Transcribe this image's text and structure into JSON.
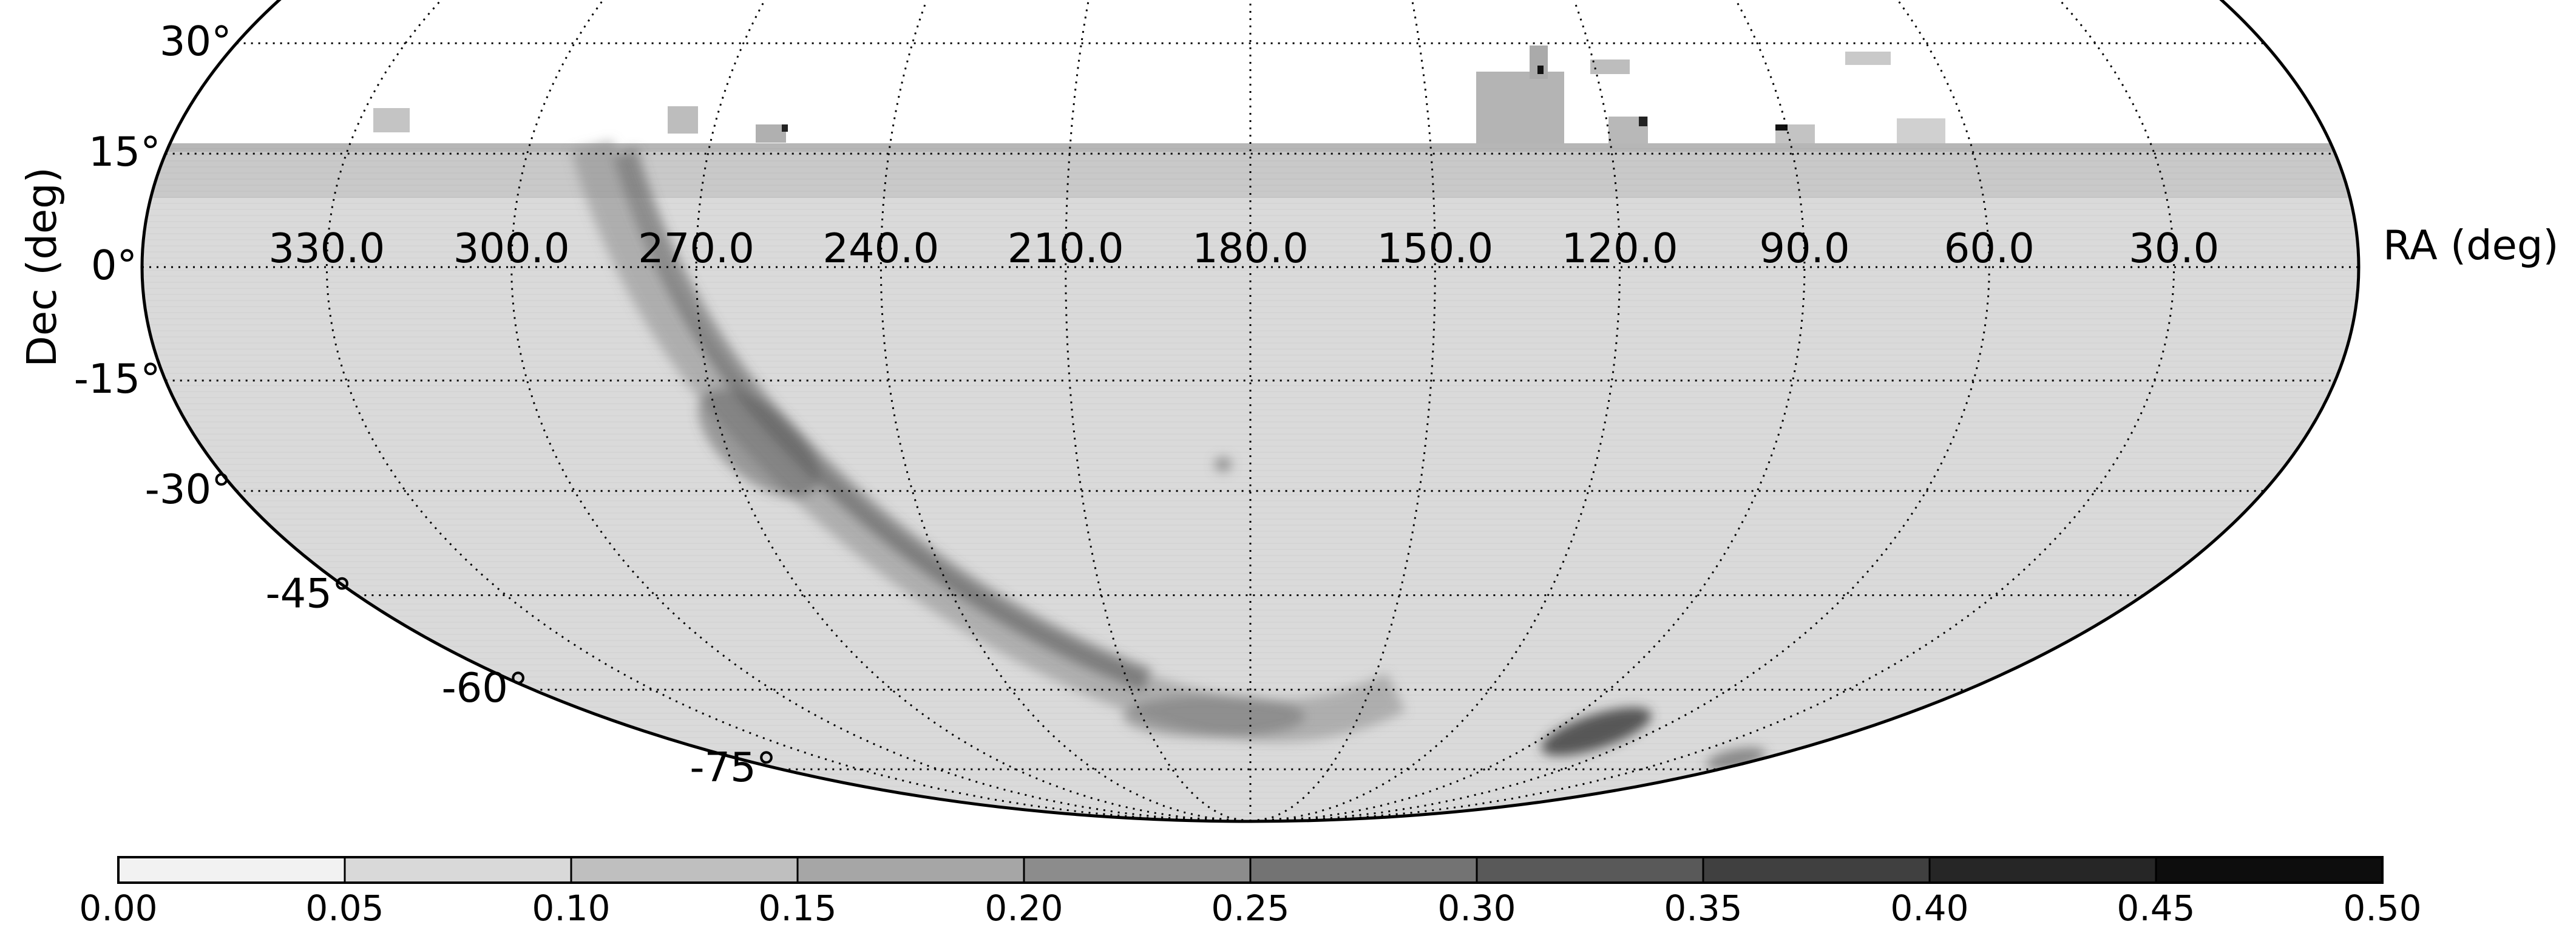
{
  "map": {
    "projection": "Mollweide (all-sky)",
    "x_axis_label": "RA (deg)",
    "y_axis_label": "Dec (deg)",
    "ra_tick_labels": [
      "330.0",
      "300.0",
      "270.0",
      "240.0",
      "210.0",
      "180.0",
      "150.0",
      "120.0",
      "90.0",
      "60.0",
      "30.0"
    ],
    "dec_tick_labels": [
      "30°",
      "15°",
      "0°",
      "-15°",
      "-30°",
      "-45°",
      "-60°",
      "-75°"
    ],
    "coverage_dec_max_deg": 15,
    "colormap": "gray_r",
    "background_color": "#d9d9d9",
    "grid_line_style": "dotted"
  },
  "colorbar": {
    "min": 0.0,
    "max": 0.5,
    "tick_labels": [
      "0.00",
      "0.05",
      "0.10",
      "0.15",
      "0.20",
      "0.25",
      "0.30",
      "0.35",
      "0.40",
      "0.45",
      "0.50"
    ],
    "levels": 10
  }
}
